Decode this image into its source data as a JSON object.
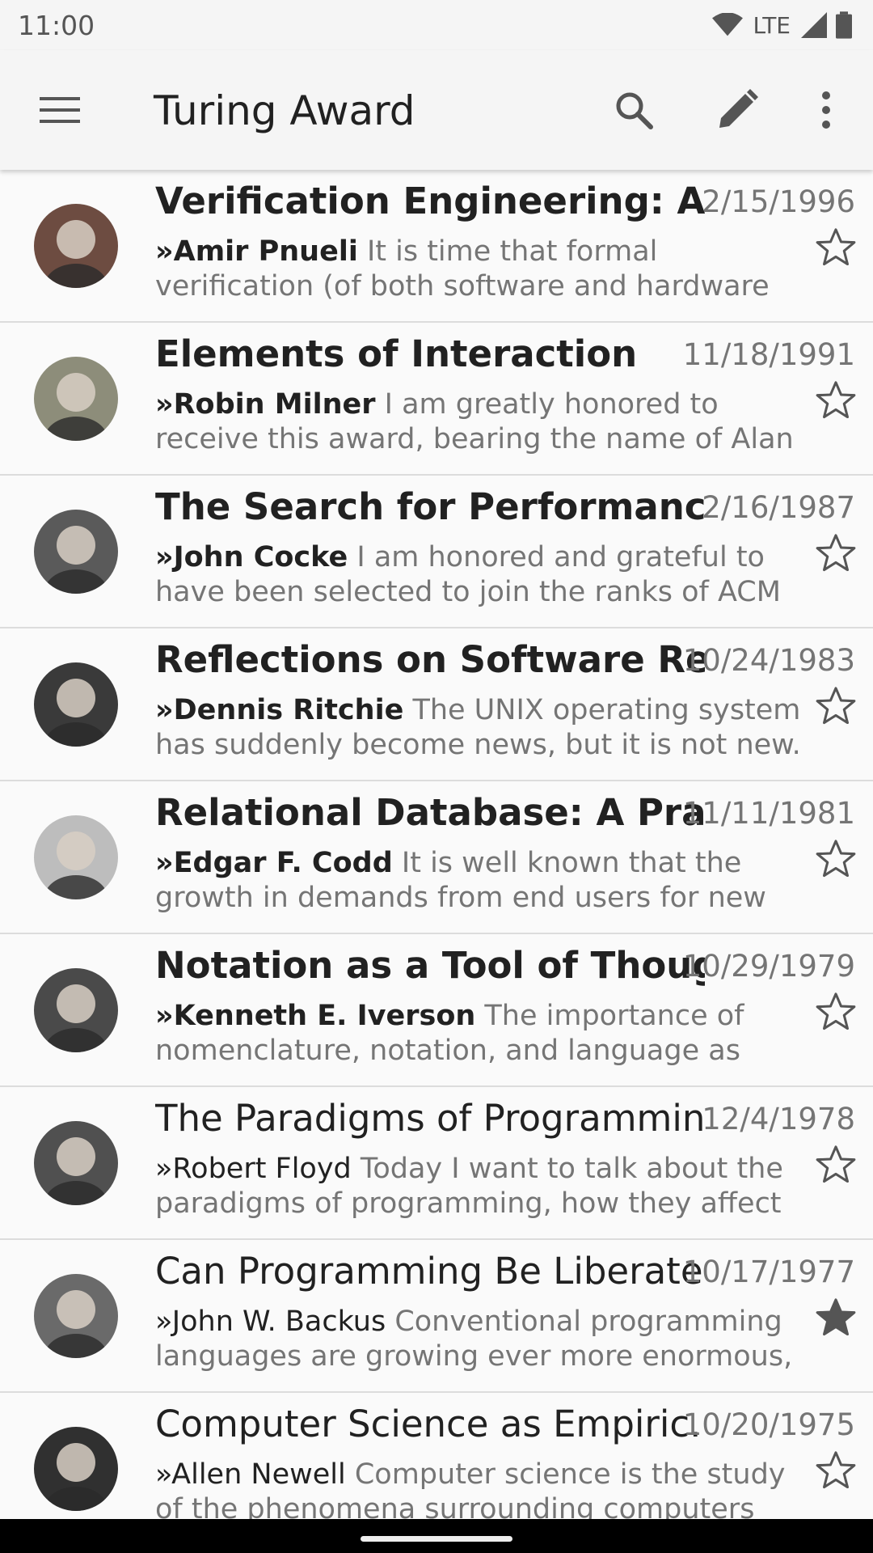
{
  "status": {
    "time": "11:00",
    "network": "LTE"
  },
  "app_bar": {
    "title": "Turing Award"
  },
  "items": [
    {
      "title": "Verification Engineering: A Fut..",
      "date": "2/15/1996",
      "author": "»Amir Pnueli",
      "snippet": " It is time that formal verification (of both software and hardware systems)",
      "starred": false,
      "unread": true
    },
    {
      "title": "Elements of Interaction",
      "date": "11/18/1991",
      "author": "»Robin Milner",
      "snippet": " I am greatly honored to receive this award, bearing the name of Alan Turing.",
      "starred": false,
      "unread": true
    },
    {
      "title": "The Search for Performance in..",
      "date": "2/16/1987",
      "author": "»John Cocke",
      "snippet": " I am honored and grateful to have been selected to join the ranks of ACM Turing",
      "starred": false,
      "unread": true
    },
    {
      "title": "Reflections on Software Rese..",
      "date": "10/24/1983",
      "author": "»Dennis Ritchie",
      "snippet": " The UNIX operating system has suddenly become news, but it is not new. It",
      "starred": false,
      "unread": true
    },
    {
      "title": "Relational Database: A Practi..",
      "date": "11/11/1981",
      "author": "»Edgar F. Codd",
      "snippet": " It is well known that the growth in demands from end users for new",
      "starred": false,
      "unread": true
    },
    {
      "title": "Notation as a Tool of Thought",
      "date": "10/29/1979",
      "author": "»Kenneth E. Iverson",
      "snippet": " The importance of nomenclature, notation, and language as tools of",
      "starred": false,
      "unread": true
    },
    {
      "title": "The Paradigms of Programming",
      "date": "12/4/1978",
      "author": "»Robert Floyd",
      "snippet": " Today I want to talk about the paradigms of programming, how they affect our",
      "starred": false,
      "unread": false
    },
    {
      "title": "Can Programming Be Liberate..",
      "date": "10/17/1977",
      "author": "»John W. Backus",
      "snippet": " Conventional programming languages are growing ever more enormous, but",
      "starred": true,
      "unread": false
    },
    {
      "title": "Computer Science as Empiric..",
      "date": "10/20/1975",
      "author": "»Allen Newell",
      "snippet": " Computer science is the study of the phenomena surrounding computers",
      "starred": false,
      "unread": false
    }
  ]
}
